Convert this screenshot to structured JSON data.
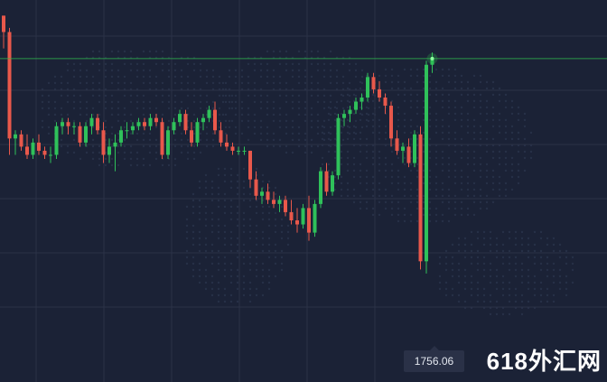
{
  "price_tag": "1756.06",
  "watermark": "618外汇网",
  "colors": {
    "up": "#2fc15a",
    "down": "#e8584b",
    "crosshair": "#2ebf4f",
    "grid": "#2b3247",
    "background": "#1b2236"
  },
  "chart_data": {
    "type": "candlestick",
    "title": "",
    "xlabel": "",
    "ylabel": "",
    "ylim": [
      1756.0,
      1763.5
    ],
    "grid": true,
    "crosshair_price": 1762.95,
    "ohlc": [
      [
        1764.0,
        1764.0,
        1763.2,
        1763.6
      ],
      [
        1763.6,
        1763.7,
        1760.6,
        1761.0
      ],
      [
        1761.0,
        1761.2,
        1760.6,
        1761.1
      ],
      [
        1761.1,
        1761.2,
        1760.7,
        1760.8
      ],
      [
        1760.8,
        1761.1,
        1760.5,
        1760.6
      ],
      [
        1760.6,
        1761.0,
        1760.5,
        1760.9
      ],
      [
        1760.9,
        1761.1,
        1760.6,
        1760.7
      ],
      [
        1760.7,
        1760.8,
        1760.5,
        1760.6
      ],
      [
        1760.6,
        1760.8,
        1760.4,
        1760.6
      ],
      [
        1760.6,
        1761.4,
        1760.5,
        1761.3
      ],
      [
        1761.3,
        1761.5,
        1761.1,
        1761.4
      ],
      [
        1761.4,
        1761.5,
        1761.1,
        1761.3
      ],
      [
        1761.3,
        1761.4,
        1761.1,
        1761.3
      ],
      [
        1761.3,
        1761.4,
        1760.8,
        1760.9
      ],
      [
        1760.9,
        1761.4,
        1760.8,
        1761.3
      ],
      [
        1761.3,
        1761.6,
        1761.1,
        1761.5
      ],
      [
        1761.5,
        1761.6,
        1761.1,
        1761.2
      ],
      [
        1761.2,
        1761.4,
        1760.4,
        1760.6
      ],
      [
        1760.6,
        1761.0,
        1760.4,
        1760.8
      ],
      [
        1760.8,
        1761.1,
        1760.2,
        1760.9
      ],
      [
        1760.9,
        1761.3,
        1760.8,
        1761.2
      ],
      [
        1761.2,
        1761.4,
        1761.0,
        1761.2
      ],
      [
        1761.2,
        1761.4,
        1761.1,
        1761.3
      ],
      [
        1761.3,
        1761.5,
        1761.2,
        1761.4
      ],
      [
        1761.4,
        1761.5,
        1761.2,
        1761.3
      ],
      [
        1761.3,
        1761.6,
        1761.2,
        1761.5
      ],
      [
        1761.5,
        1761.6,
        1761.3,
        1761.4
      ],
      [
        1761.4,
        1761.5,
        1760.5,
        1760.6
      ],
      [
        1760.6,
        1761.3,
        1760.5,
        1761.2
      ],
      [
        1761.2,
        1761.5,
        1761.1,
        1761.4
      ],
      [
        1761.4,
        1761.7,
        1761.3,
        1761.6
      ],
      [
        1761.6,
        1761.7,
        1761.1,
        1761.2
      ],
      [
        1761.2,
        1761.4,
        1760.8,
        1760.9
      ],
      [
        1760.9,
        1761.5,
        1760.8,
        1761.4
      ],
      [
        1761.4,
        1761.6,
        1761.2,
        1761.5
      ],
      [
        1761.5,
        1761.8,
        1761.4,
        1761.7
      ],
      [
        1761.7,
        1761.9,
        1761.1,
        1761.2
      ],
      [
        1761.2,
        1761.4,
        1760.8,
        1760.9
      ],
      [
        1760.9,
        1761.1,
        1760.7,
        1760.8
      ],
      [
        1760.8,
        1760.9,
        1760.6,
        1760.7
      ],
      [
        1760.7,
        1760.8,
        1760.6,
        1760.7
      ],
      [
        1760.7,
        1760.8,
        1760.6,
        1760.7
      ],
      [
        1760.7,
        1760.7,
        1759.8,
        1760.0
      ],
      [
        1760.0,
        1760.2,
        1759.5,
        1759.6
      ],
      [
        1759.6,
        1759.8,
        1759.4,
        1759.7
      ],
      [
        1759.7,
        1759.9,
        1759.4,
        1759.5
      ],
      [
        1759.5,
        1759.7,
        1759.3,
        1759.4
      ],
      [
        1759.4,
        1759.6,
        1759.2,
        1759.5
      ],
      [
        1759.5,
        1759.6,
        1759.1,
        1759.2
      ],
      [
        1759.2,
        1759.5,
        1758.9,
        1759.0
      ],
      [
        1759.0,
        1759.3,
        1758.7,
        1758.9
      ],
      [
        1758.9,
        1759.4,
        1758.8,
        1759.3
      ],
      [
        1759.3,
        1759.6,
        1758.5,
        1758.7
      ],
      [
        1758.7,
        1759.5,
        1758.6,
        1759.4
      ],
      [
        1759.4,
        1760.3,
        1759.3,
        1760.2
      ],
      [
        1760.2,
        1760.4,
        1759.6,
        1759.7
      ],
      [
        1759.7,
        1760.2,
        1759.6,
        1760.1
      ],
      [
        1760.1,
        1761.6,
        1760.0,
        1761.5
      ],
      [
        1761.5,
        1761.7,
        1761.3,
        1761.6
      ],
      [
        1761.6,
        1761.8,
        1761.4,
        1761.7
      ],
      [
        1761.7,
        1762.0,
        1761.6,
        1761.9
      ],
      [
        1761.9,
        1762.1,
        1761.7,
        1762.0
      ],
      [
        1762.0,
        1762.6,
        1761.9,
        1762.5
      ],
      [
        1762.5,
        1762.6,
        1762.1,
        1762.2
      ],
      [
        1762.2,
        1762.4,
        1761.9,
        1762.0
      ],
      [
        1762.0,
        1762.1,
        1761.6,
        1761.8
      ],
      [
        1761.8,
        1761.9,
        1760.8,
        1761.0
      ],
      [
        1761.0,
        1761.2,
        1760.6,
        1760.7
      ],
      [
        1760.7,
        1760.9,
        1760.4,
        1760.8
      ],
      [
        1760.8,
        1761.0,
        1760.3,
        1760.4
      ],
      [
        1760.4,
        1761.2,
        1760.3,
        1761.1
      ],
      [
        1761.1,
        1761.3,
        1757.8,
        1758.0
      ],
      [
        1758.0,
        1762.9,
        1757.7,
        1762.8
      ],
      [
        1762.8,
        1763.1,
        1762.6,
        1762.95
      ]
    ]
  }
}
